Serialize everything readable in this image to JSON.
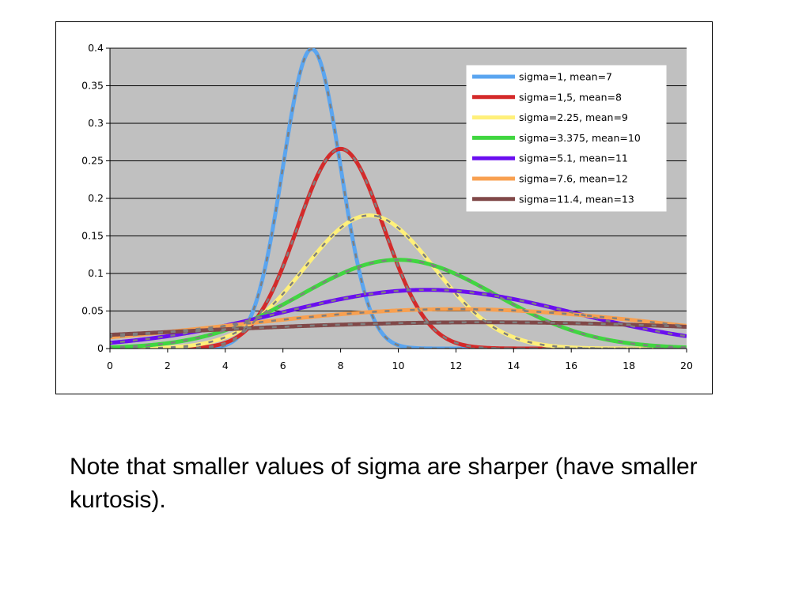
{
  "chart_data": {
    "type": "line",
    "title": "",
    "xlabel": "",
    "ylabel": "",
    "xlim": [
      0,
      20
    ],
    "ylim": [
      0,
      0.4
    ],
    "x_ticks": [
      "0",
      "2",
      "4",
      "6",
      "8",
      "10",
      "12",
      "14",
      "16",
      "18",
      "20"
    ],
    "y_ticks": [
      "0",
      "0.05",
      "0.1",
      "0.15",
      "0.2",
      "0.25",
      "0.3",
      "0.35",
      "0.4"
    ],
    "grid": "horizontal",
    "plot_background": "#c0c0c0",
    "legend_position": "top-right",
    "series": [
      {
        "name": "sigma=1, mean=7",
        "color": "#5aa5f0",
        "sigma": 1,
        "mean": 7
      },
      {
        "name": "sigma=1,5, mean=8",
        "color": "#d42a2a",
        "sigma": 1.5,
        "mean": 8
      },
      {
        "name": "sigma=2.25, mean=9",
        "color": "#fff07a",
        "sigma": 2.25,
        "mean": 9
      },
      {
        "name": "sigma=3.375, mean=10",
        "color": "#40d640",
        "sigma": 3.375,
        "mean": 10
      },
      {
        "name": "sigma=5.1, mean=11",
        "color": "#6a0ef0",
        "sigma": 5.1,
        "mean": 11
      },
      {
        "name": "sigma=7.6, mean=12",
        "color": "#f8a050",
        "sigma": 7.6,
        "mean": 12
      },
      {
        "name": "sigma=11.4, mean=13",
        "color": "#804848",
        "sigma": 11.4,
        "mean": 13
      }
    ],
    "overlay_color": "#7f7f7f"
  },
  "caption": "Note that smaller values of sigma are sharper (have smaller kurtosis)."
}
